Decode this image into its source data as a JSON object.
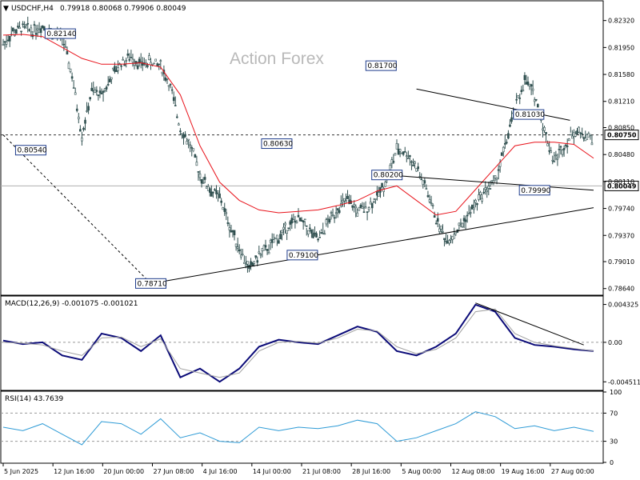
{
  "header": {
    "symbol": "USDCHF,H4",
    "ohlc": "0.79918 0.80068 0.79906 0.80049",
    "watermark": "Action Forex"
  },
  "colors": {
    "candle": "#2f4f4f",
    "ma": "#e8121a",
    "macd": "#0a0a78",
    "signal": "#a0a0a0",
    "rsi": "#2e9bd6",
    "trendline": "#000000",
    "annotation_box": "#1e3c8c"
  },
  "chart_data": [
    {
      "type": "line",
      "panel": "price",
      "title": "USDCHF,H4",
      "ylim": [
        0.7856,
        0.8258
      ],
      "y_ticks": [
        "0.82320",
        "0.81950",
        "0.81580",
        "0.81210",
        "0.80850",
        "0.80480",
        "0.80110",
        "0.79740",
        "0.79370",
        "0.79010",
        "0.78640"
      ],
      "x_ticks": [
        "5 Jun 2025",
        "12 Jun 16:00",
        "20 Jun 00:00",
        "27 Jun 08:00",
        "4 Jul 16:00",
        "14 Jul 00:00",
        "21 Jul 08:00",
        "28 Jul 16:00",
        "5 Aug 00:00",
        "12 Aug 08:00",
        "19 Aug 16:00",
        "27 Aug 00:00"
      ],
      "series": [
        {
          "kind": "candles-approx",
          "x": [
            0,
            5,
            10,
            15,
            20,
            25,
            30,
            35,
            40,
            45,
            50,
            55,
            60,
            65,
            70,
            75,
            80,
            85,
            90,
            95,
            100,
            105,
            110,
            115,
            120,
            125,
            130,
            135,
            140,
            145,
            150,
            155,
            160,
            165,
            170,
            175,
            180,
            185,
            190,
            195,
            200,
            205,
            210,
            215,
            220,
            225,
            230,
            235,
            240,
            245,
            250,
            255,
            260,
            265,
            270,
            275,
            280,
            285,
            290,
            295,
            300
          ],
          "values": [
            0.82,
            0.8216,
            0.8222,
            0.8219,
            0.8225,
            0.8215,
            0.821,
            0.8155,
            0.8075,
            0.8135,
            0.813,
            0.8155,
            0.8175,
            0.8182,
            0.8172,
            0.8175,
            0.817,
            0.814,
            0.8085,
            0.806,
            0.802,
            0.8,
            0.799,
            0.795,
            0.792,
            0.789,
            0.791,
            0.792,
            0.7935,
            0.795,
            0.796,
            0.7945,
            0.793,
            0.7955,
            0.7975,
            0.7985,
            0.797,
            0.7975,
            0.799,
            0.8015,
            0.8055,
            0.805,
            0.803,
            0.8,
            0.796,
            0.793,
            0.794,
            0.796,
            0.798,
            0.8,
            0.801,
            0.806,
            0.811,
            0.815,
            0.813,
            0.808,
            0.804,
            0.806,
            0.808,
            0.8075,
            0.807
          ]
        },
        {
          "kind": "moving-average",
          "x": [
            0,
            10,
            20,
            30,
            40,
            50,
            60,
            70,
            80,
            90,
            100,
            110,
            120,
            130,
            140,
            150,
            160,
            170,
            180,
            190,
            200,
            210,
            220,
            230,
            240,
            250,
            260,
            270,
            280,
            290,
            300
          ],
          "values": [
            0.8212,
            0.8213,
            0.821,
            0.8195,
            0.818,
            0.8172,
            0.8172,
            0.8174,
            0.8168,
            0.813,
            0.806,
            0.801,
            0.7985,
            0.7972,
            0.7968,
            0.797,
            0.7972,
            0.7978,
            0.7985,
            0.7998,
            0.8005,
            0.7985,
            0.7965,
            0.797,
            0.8,
            0.803,
            0.806,
            0.8065,
            0.8065,
            0.8062,
            0.8043
          ]
        }
      ],
      "annotations": [
        {
          "label": "0.82140",
          "x": 29,
          "value": 0.8214
        },
        {
          "label": "0.80540",
          "x": 14,
          "value": 0.8054
        },
        {
          "label": "0.78710",
          "x": 75,
          "value": 0.7871
        },
        {
          "label": "0.80630",
          "x": 139,
          "value": 0.8063
        },
        {
          "label": "0.79100",
          "x": 152,
          "value": 0.791
        },
        {
          "label": "0.81700",
          "x": 192,
          "value": 0.817
        },
        {
          "label": "0.80200",
          "x": 195,
          "value": 0.802
        },
        {
          "label": "0.81030",
          "x": 267,
          "value": 0.8103
        },
        {
          "label": "0.79990",
          "x": 270,
          "value": 0.7999
        }
      ],
      "horizontal_lines": [
        {
          "value": 0.8075,
          "label": "0.80750",
          "style": "dashed"
        },
        {
          "value": 0.80049,
          "label": "0.80049",
          "style": "solid-grey"
        }
      ]
    },
    {
      "type": "line",
      "panel": "macd",
      "title": "MACD(12,26,9) -0.001075 -0.001021",
      "ylim": [
        -0.0054,
        0.0052
      ],
      "y_ticks": [
        "0.004325",
        "0.00",
        "-0.004511"
      ],
      "series": [
        {
          "name": "MACD",
          "x": [
            0,
            10,
            20,
            30,
            40,
            50,
            60,
            70,
            80,
            90,
            100,
            110,
            120,
            130,
            140,
            150,
            160,
            170,
            180,
            190,
            200,
            210,
            220,
            230,
            240,
            250,
            260,
            270,
            280,
            290,
            300
          ],
          "values": [
            0.0002,
            -0.0002,
            0.0,
            -0.0015,
            -0.002,
            0.001,
            0.0005,
            -0.001,
            0.0008,
            -0.004,
            -0.003,
            -0.0045,
            -0.003,
            -0.0005,
            0.0003,
            0.0,
            -0.0002,
            0.0008,
            0.0018,
            0.0012,
            -0.001,
            -0.0015,
            -0.0005,
            0.001,
            0.0043,
            0.0035,
            0.0005,
            -0.0003,
            -0.0005,
            -0.0008,
            -0.001
          ]
        },
        {
          "name": "Signal",
          "x": [
            0,
            10,
            20,
            30,
            40,
            50,
            60,
            70,
            80,
            90,
            100,
            110,
            120,
            130,
            140,
            150,
            160,
            170,
            180,
            190,
            200,
            210,
            220,
            230,
            240,
            250,
            260,
            270,
            280,
            290,
            300
          ],
          "values": [
            0.0,
            -0.0001,
            -0.0003,
            -0.001,
            -0.0015,
            0.0005,
            0.0006,
            -0.0005,
            0.0004,
            -0.003,
            -0.0035,
            -0.004,
            -0.0035,
            -0.001,
            0.0,
            0.0001,
            -0.0001,
            0.0005,
            0.0015,
            0.0013,
            -0.0005,
            -0.0013,
            -0.0008,
            0.0005,
            0.0035,
            0.0038,
            0.001,
            0.0,
            -0.0004,
            -0.0007,
            -0.001
          ]
        }
      ]
    },
    {
      "type": "line",
      "panel": "rsi",
      "title": "RSI(14) 43.7639",
      "ylim": [
        0,
        100
      ],
      "y_ticks": [
        "100",
        "70",
        "30",
        "0"
      ],
      "series": [
        {
          "name": "RSI",
          "x": [
            0,
            10,
            20,
            30,
            40,
            50,
            60,
            70,
            80,
            90,
            100,
            110,
            120,
            130,
            140,
            150,
            160,
            170,
            180,
            190,
            200,
            210,
            220,
            230,
            240,
            250,
            260,
            270,
            280,
            290,
            300
          ],
          "values": [
            50,
            45,
            55,
            40,
            25,
            58,
            55,
            40,
            62,
            35,
            42,
            30,
            28,
            50,
            45,
            50,
            48,
            52,
            60,
            55,
            30,
            35,
            45,
            55,
            72,
            65,
            48,
            52,
            45,
            50,
            44
          ]
        }
      ]
    }
  ]
}
